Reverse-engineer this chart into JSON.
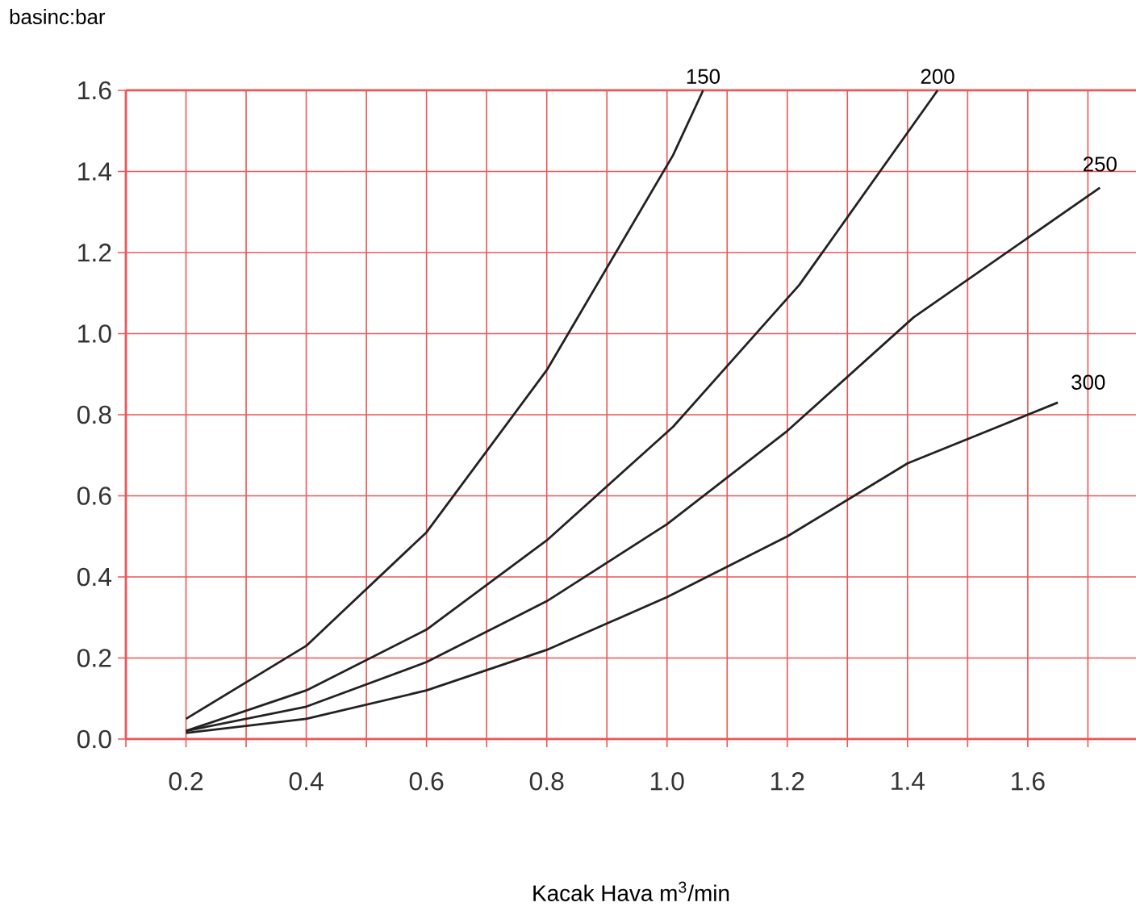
{
  "chart_data": {
    "type": "line",
    "xlabel": "Kacak Hava  m$^{3}$/min",
    "ylabel": "basinc:bar",
    "xlim": [
      0.1,
      1.78
    ],
    "ylim": [
      0,
      1.6
    ],
    "xticks": [
      {
        "value": 0.1,
        "label": null
      },
      {
        "value": 0.2,
        "label": "0.2"
      },
      {
        "value": 0.3,
        "label": null
      },
      {
        "value": 0.4,
        "label": "0.4"
      },
      {
        "value": 0.5,
        "label": null
      },
      {
        "value": 0.6,
        "label": "0.6"
      },
      {
        "value": 0.7,
        "label": null
      },
      {
        "value": 0.8,
        "label": "0.8"
      },
      {
        "value": 0.9,
        "label": null
      },
      {
        "value": 1.0,
        "label": "1.0"
      },
      {
        "value": 1.1,
        "label": null
      },
      {
        "value": 1.2,
        "label": "1.2"
      },
      {
        "value": 1.3,
        "label": null
      },
      {
        "value": 1.4,
        "label": "1.4"
      },
      {
        "value": 1.5,
        "label": null
      },
      {
        "value": 1.6,
        "label": "1.6"
      },
      {
        "value": 1.7,
        "label": null
      }
    ],
    "yticks": [
      {
        "value": 0,
        "label": "0.0"
      },
      {
        "value": 0.2,
        "label": "0.2"
      },
      {
        "value": 0.4,
        "label": "0.4"
      },
      {
        "value": 0.6,
        "label": "0.6"
      },
      {
        "value": 0.8,
        "label": "0.8"
      },
      {
        "value": 1.0,
        "label": "1.0"
      },
      {
        "value": 1.2,
        "label": "1.2"
      },
      {
        "value": 1.4,
        "label": "1.4"
      },
      {
        "value": 1.6,
        "label": "1.6"
      }
    ],
    "grid": true,
    "marker": "none",
    "line_style": "solid",
    "series": [
      {
        "name": "150",
        "color": "#222222",
        "x": [
          0.2,
          0.4,
          0.6,
          0.8,
          1.01,
          1.06
        ],
        "values": [
          0.05,
          0.23,
          0.51,
          0.91,
          1.44,
          1.6
        ]
      },
      {
        "name": "200",
        "color": "#222222",
        "x": [
          0.2,
          0.4,
          0.6,
          0.8,
          1.01,
          1.22,
          1.45
        ],
        "values": [
          0.02,
          0.12,
          0.27,
          0.49,
          0.77,
          1.12,
          1.6
        ]
      },
      {
        "name": "250",
        "color": "#222222",
        "x": [
          0.2,
          0.4,
          0.6,
          0.8,
          1.0,
          1.2,
          1.41,
          1.72
        ],
        "values": [
          0.02,
          0.08,
          0.19,
          0.34,
          0.53,
          0.76,
          1.04,
          1.36
        ]
      },
      {
        "name": "300",
        "color": "#222222",
        "x": [
          0.2,
          0.4,
          0.6,
          0.8,
          1.0,
          1.2,
          1.4,
          1.65
        ],
        "values": [
          0.015,
          0.05,
          0.12,
          0.22,
          0.35,
          0.5,
          0.68,
          0.83
        ]
      }
    ]
  }
}
